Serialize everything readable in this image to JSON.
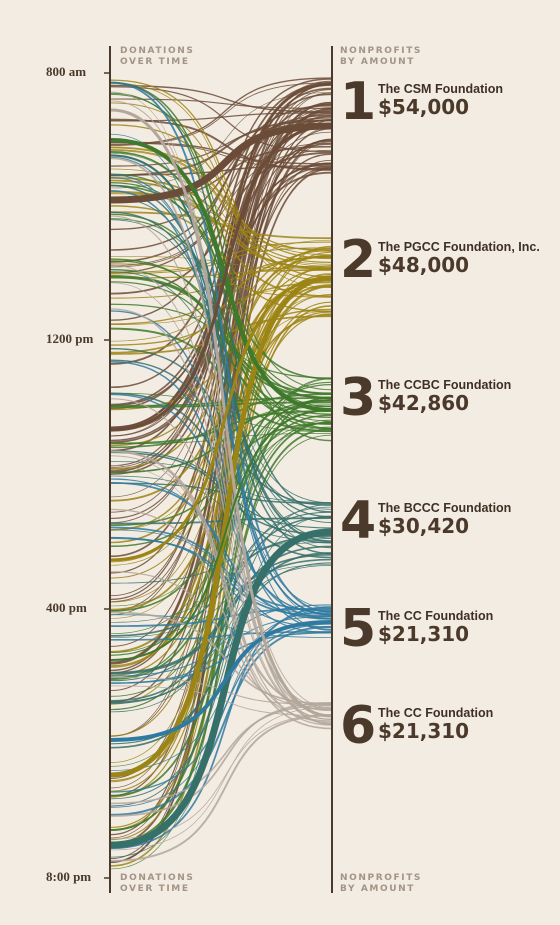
{
  "headers": {
    "left_top": "DONATIONS\nOVER TIME",
    "right_top": "NONPROFITS\nBY AMOUNT",
    "left_bottom": "DONATIONS\nOVER TIME",
    "right_bottom": "NONPROFITS\nBY AMOUNT"
  },
  "chart_data": {
    "type": "flow",
    "y_axis_ticks": [
      "800 am",
      "1200 pm",
      "400 pm",
      "8:00 pm"
    ],
    "nonprofits": [
      {
        "rank": "1",
        "name": "The CSM Foundation",
        "amount": "$54,000",
        "value": 54000,
        "color": "#6b4c38"
      },
      {
        "rank": "2",
        "name": "The PGCC Foundation, Inc.",
        "amount": "$48,000",
        "value": 48000,
        "color": "#9c8514"
      },
      {
        "rank": "3",
        "name": "The CCBC Foundation",
        "amount": "$42,860",
        "value": 42860,
        "color": "#3f7a2c"
      },
      {
        "rank": "4",
        "name": "The BCCC Foundation",
        "amount": "$30,420",
        "value": 30420,
        "color": "#35706a"
      },
      {
        "rank": "5",
        "name": "The CC Foundation",
        "amount": "$21,310",
        "value": 21310,
        "color": "#2f7aa0"
      },
      {
        "rank": "6",
        "name": "The CC Foundation",
        "amount": "$21,310",
        "value": 21310,
        "color": "#b3a79b"
      }
    ]
  }
}
